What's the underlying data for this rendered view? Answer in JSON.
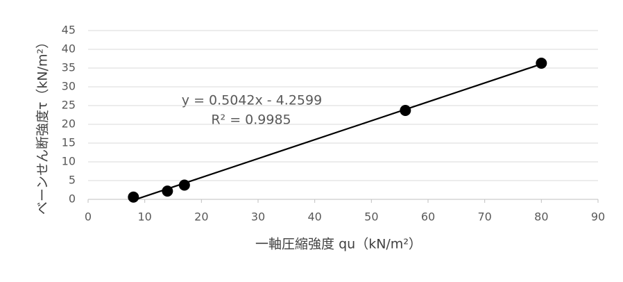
{
  "chart_data": {
    "type": "scatter",
    "x_label": "一軸圧縮強度 qu（kN/m²）",
    "y_label": "ベーンせん断強度τ（kN/m²）",
    "series": [
      {
        "color": "#000000",
        "x": [
          8,
          14,
          17,
          56,
          80
        ],
        "values": [
          0.6,
          2.2,
          3.8,
          23.7,
          36.3
        ]
      }
    ],
    "trendline": {
      "slope": 0.5042,
      "intercept": -4.2599,
      "color": "#000000",
      "equation": "y = 0.5042x - 4.2599",
      "r_squared": "R² = 0.9985"
    },
    "xlim": [
      0,
      90
    ],
    "xticks": [
      0,
      10,
      20,
      30,
      40,
      50,
      60,
      70,
      80,
      90
    ],
    "ylim": [
      0,
      45
    ],
    "yticks": [
      0,
      5,
      10,
      15,
      20,
      25,
      30,
      35,
      40,
      45
    ],
    "grid": true
  }
}
